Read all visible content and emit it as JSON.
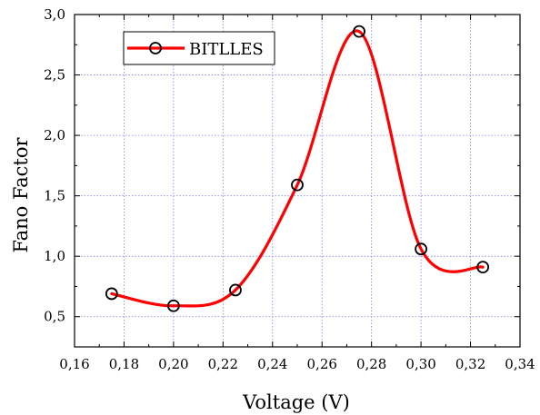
{
  "chart_data": {
    "type": "line",
    "xlabel": "Voltage (V)",
    "ylabel": "Fano Factor",
    "xlim": [
      0.16,
      0.34
    ],
    "ylim": [
      0.25,
      3.0
    ],
    "x_ticks": [
      "0,16",
      "0,18",
      "0,20",
      "0,22",
      "0,24",
      "0,26",
      "0,28",
      "0,30",
      "0,32",
      "0,34"
    ],
    "y_ticks": [
      "0,5",
      "1,0",
      "1,5",
      "2,0",
      "2,5",
      "3,0"
    ],
    "grid": true,
    "legend_position": "top-left",
    "series": [
      {
        "name": "BITLLES",
        "x": [
          0.175,
          0.2,
          0.225,
          0.25,
          0.275,
          0.3,
          0.325
        ],
        "y": [
          0.69,
          0.59,
          0.72,
          1.59,
          2.86,
          1.06,
          0.91
        ],
        "line_color": "#ff0000",
        "marker": "open-circle",
        "marker_color": "#000000"
      }
    ],
    "grid_color": "#8080ff"
  }
}
